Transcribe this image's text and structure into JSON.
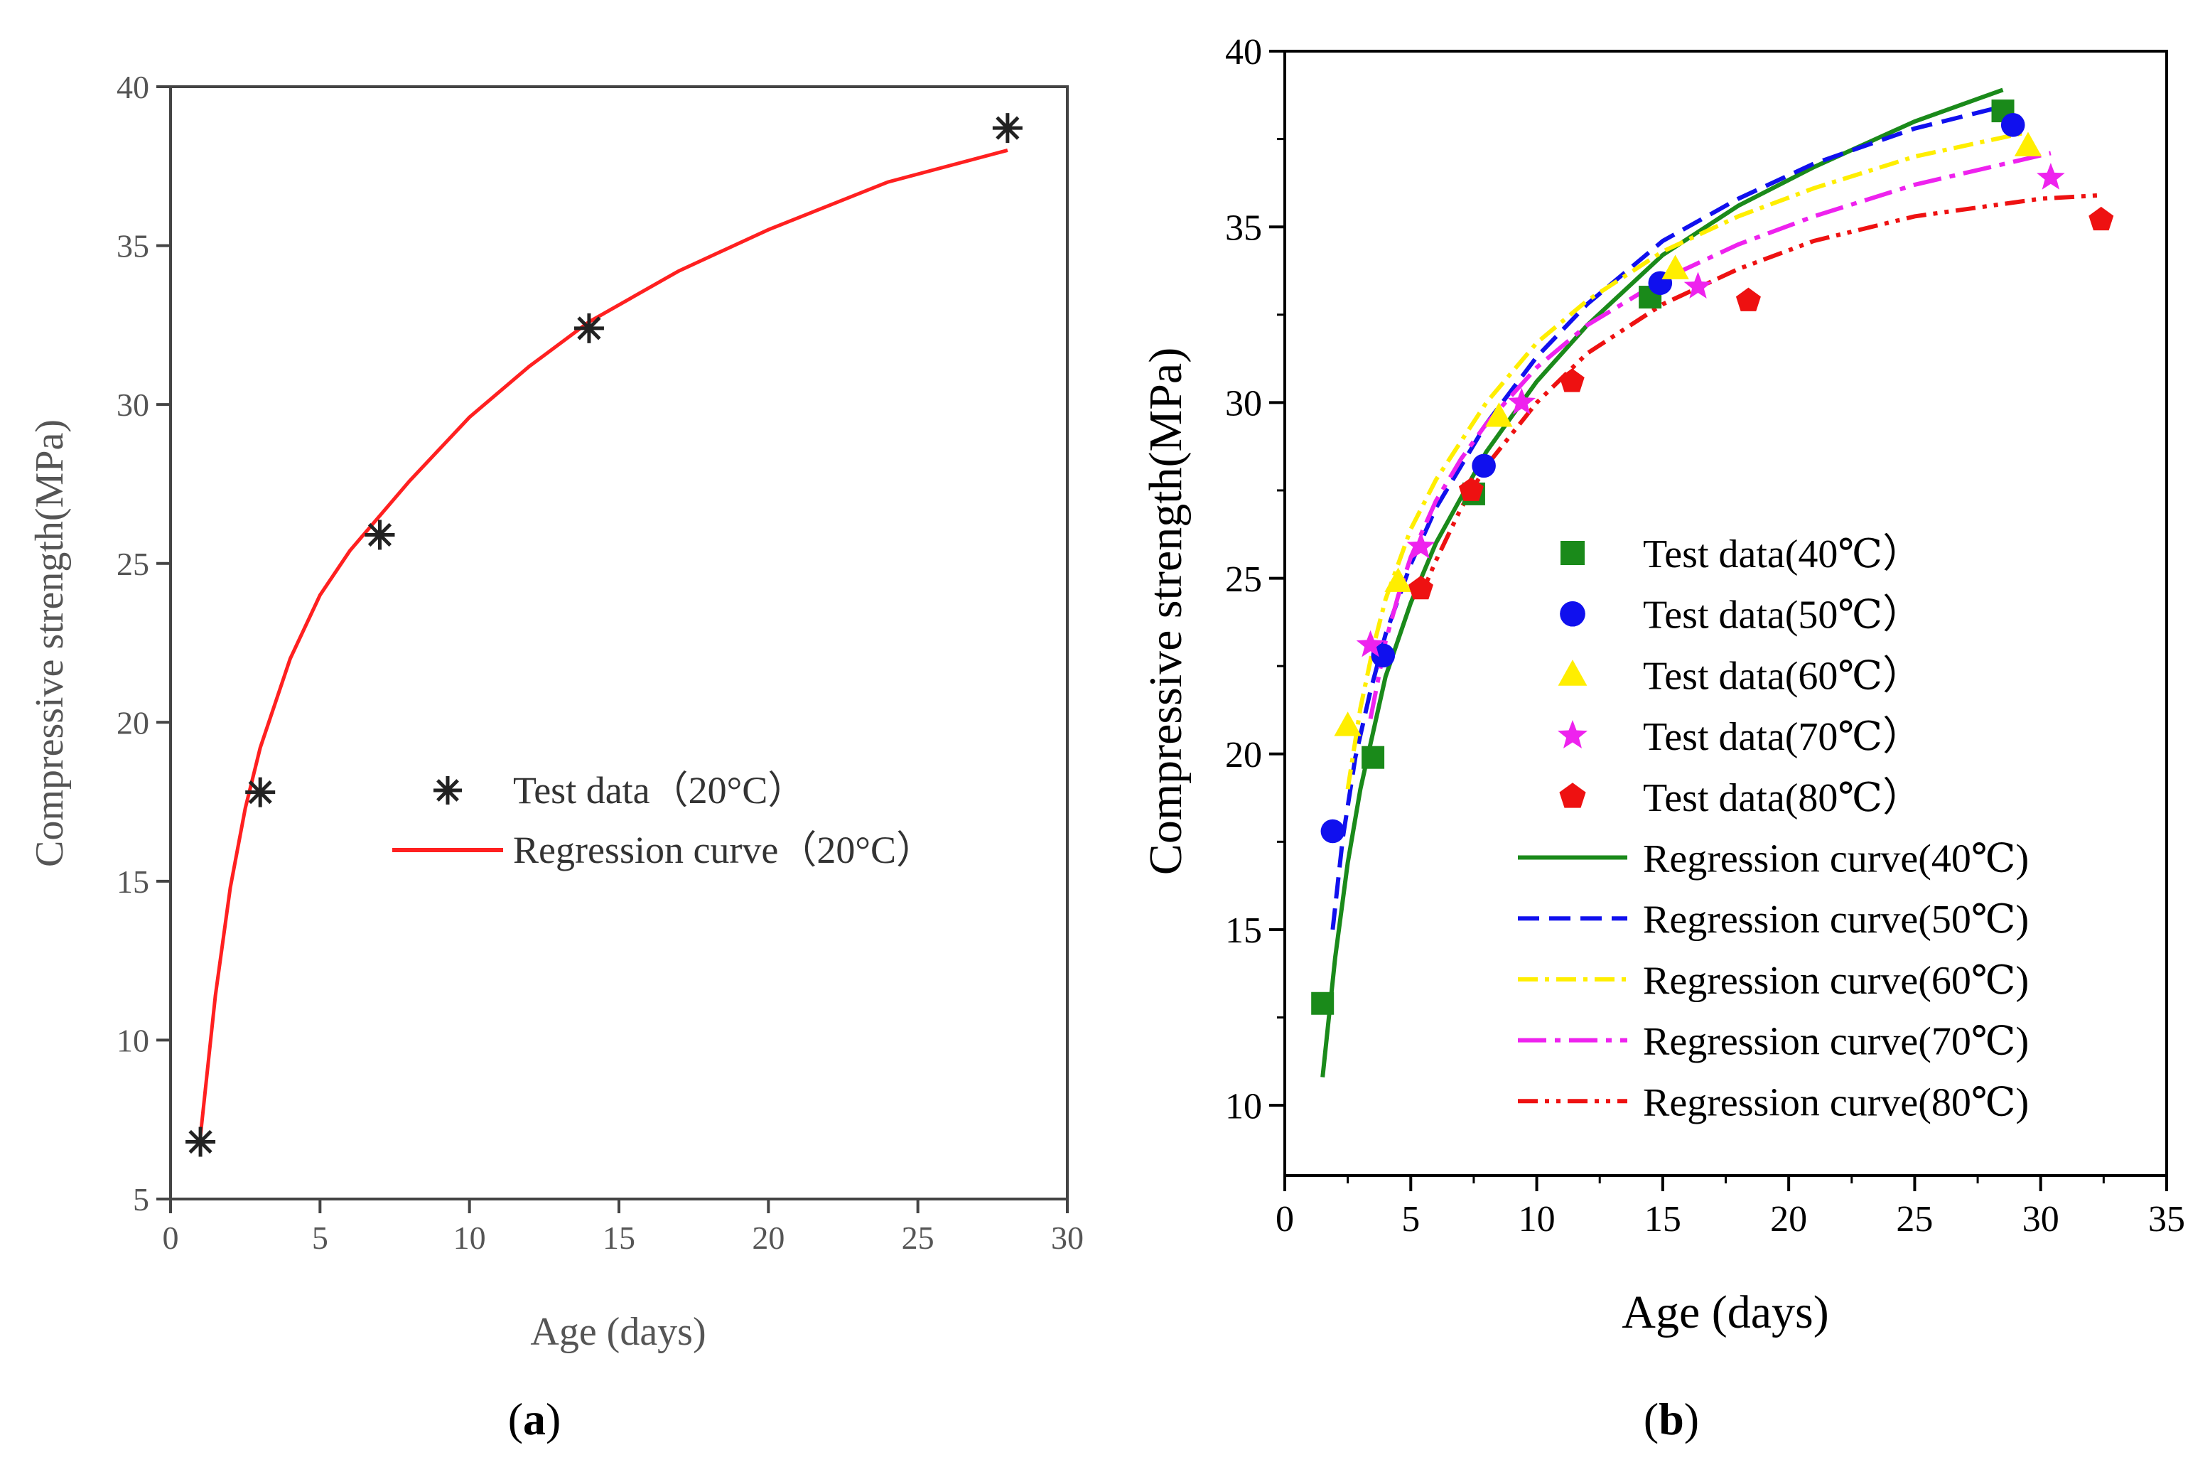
{
  "chart_data": [
    {
      "panel": "a",
      "panel_label": "a",
      "type": "scatter",
      "xlabel": "Age (days)",
      "ylabel": "Compressive strength(MPa)",
      "xlim": [
        0,
        30
      ],
      "ylim": [
        5,
        40
      ],
      "xticks": [
        0,
        5,
        10,
        15,
        20,
        25,
        30
      ],
      "yticks": [
        5,
        10,
        15,
        20,
        25,
        30,
        35,
        40
      ],
      "legend_position": "center-right",
      "series": [
        {
          "name": "Test data（20°C）",
          "kind": "scatter",
          "marker": "asterisk",
          "color": "#222222",
          "x": [
            1,
            3,
            7,
            14,
            28
          ],
          "y": [
            6.8,
            17.8,
            25.9,
            32.4,
            38.7
          ]
        },
        {
          "name": "Regression curve（20°C）",
          "kind": "line",
          "style": "solid",
          "color": "#ff2020",
          "x": [
            1,
            1.5,
            2,
            2.5,
            3,
            4,
            5,
            6,
            7,
            8,
            10,
            12,
            14,
            17,
            20,
            24,
            28
          ],
          "y": [
            7.0,
            11.4,
            14.8,
            17.3,
            19.2,
            22.0,
            24.0,
            25.4,
            26.5,
            27.6,
            29.6,
            31.2,
            32.6,
            34.2,
            35.5,
            37.0,
            38.0
          ]
        }
      ]
    },
    {
      "panel": "b",
      "panel_label": "b",
      "type": "scatter",
      "xlabel": "Age (days)",
      "ylabel": "Compressive strength(MPa)",
      "xlim": [
        0,
        35
      ],
      "ylim": [
        8,
        40
      ],
      "xticks": [
        0,
        5,
        10,
        15,
        20,
        25,
        30,
        35
      ],
      "yticks": [
        10,
        15,
        20,
        25,
        30,
        35,
        40
      ],
      "legend_position": "center-right",
      "series": [
        {
          "name": "Test data(40℃）",
          "kind": "scatter",
          "marker": "square",
          "color": "#1a8a1a",
          "x": [
            1.5,
            3.5,
            7.5,
            14.5,
            28.5
          ],
          "y": [
            12.9,
            19.9,
            27.4,
            33.0,
            38.3
          ]
        },
        {
          "name": "Test data(50℃）",
          "kind": "scatter",
          "marker": "circle",
          "color": "#1010ee",
          "x": [
            1.9,
            3.9,
            7.9,
            14.9,
            28.9
          ],
          "y": [
            17.8,
            22.8,
            28.2,
            33.4,
            37.9
          ]
        },
        {
          "name": "Test data(60℃）",
          "kind": "scatter",
          "marker": "triangle",
          "color": "#ffee00",
          "x": [
            2.5,
            4.5,
            8.5,
            15.5,
            29.5
          ],
          "y": [
            20.8,
            24.9,
            29.6,
            33.8,
            37.3
          ]
        },
        {
          "name": "Test data(70℃）",
          "kind": "scatter",
          "marker": "star",
          "color": "#ee22ee",
          "x": [
            3.4,
            5.4,
            9.4,
            16.4,
            30.4
          ],
          "y": [
            23.1,
            25.9,
            30.0,
            33.3,
            36.4
          ]
        },
        {
          "name": "Test data(80℃）",
          "kind": "scatter",
          "marker": "pentagon",
          "color": "#ee1111",
          "x": [
            5.4,
            7.4,
            11.4,
            18.4,
            32.4
          ],
          "y": [
            24.7,
            27.5,
            30.6,
            32.9,
            35.2
          ]
        },
        {
          "name": "Regression curve(40℃)",
          "kind": "line",
          "style": "solid",
          "color": "#1a8a1a",
          "x": [
            1.5,
            2,
            2.5,
            3,
            4,
            5,
            6,
            8,
            10,
            12,
            15,
            18,
            21,
            25,
            28.5
          ],
          "y": [
            10.8,
            14.2,
            16.9,
            19.0,
            22.2,
            24.3,
            26.0,
            28.6,
            30.6,
            32.2,
            34.2,
            35.6,
            36.7,
            38.0,
            38.9
          ]
        },
        {
          "name": "Regression curve(50℃)",
          "kind": "line",
          "style": "dashed",
          "color": "#1010ee",
          "x": [
            1.9,
            2.3,
            2.8,
            3.4,
            4,
            5,
            6,
            8,
            10,
            12,
            15,
            18,
            21,
            25,
            28.9
          ],
          "y": [
            15.0,
            17.6,
            19.9,
            21.8,
            23.4,
            25.4,
            27.0,
            29.4,
            31.3,
            32.8,
            34.6,
            35.8,
            36.8,
            37.8,
            38.5
          ]
        },
        {
          "name": "Regression curve(60℃)",
          "kind": "line",
          "style": "dash-dot",
          "color": "#ffee00",
          "x": [
            2.5,
            3,
            3.5,
            4,
            5,
            6,
            8,
            10,
            12,
            15,
            18,
            21,
            25,
            29.5
          ],
          "y": [
            19.0,
            21.3,
            23.0,
            24.4,
            26.4,
            27.8,
            30.0,
            31.7,
            32.9,
            34.3,
            35.3,
            36.1,
            37.0,
            37.7
          ]
        },
        {
          "name": "Regression curve(70℃)",
          "kind": "line",
          "style": "dash-dot-long",
          "color": "#ee22ee",
          "x": [
            3.4,
            4,
            4.5,
            5,
            6,
            7,
            8,
            10,
            12,
            15,
            18,
            21,
            25,
            30.4
          ],
          "y": [
            21.0,
            23.2,
            24.5,
            25.6,
            27.2,
            28.4,
            29.4,
            31.0,
            32.2,
            33.5,
            34.5,
            35.3,
            36.2,
            37.1
          ]
        },
        {
          "name": "Regression curve(80℃)",
          "kind": "line",
          "style": "dash-dot-dot",
          "color": "#ee1111",
          "x": [
            5.4,
            6,
            7,
            8,
            10,
            12,
            15,
            18,
            21,
            25,
            28,
            30,
            32.4
          ],
          "y": [
            24.5,
            25.5,
            27.0,
            28.2,
            30.0,
            31.4,
            32.8,
            33.8,
            34.6,
            35.3,
            35.6,
            35.8,
            35.9
          ]
        }
      ]
    }
  ]
}
